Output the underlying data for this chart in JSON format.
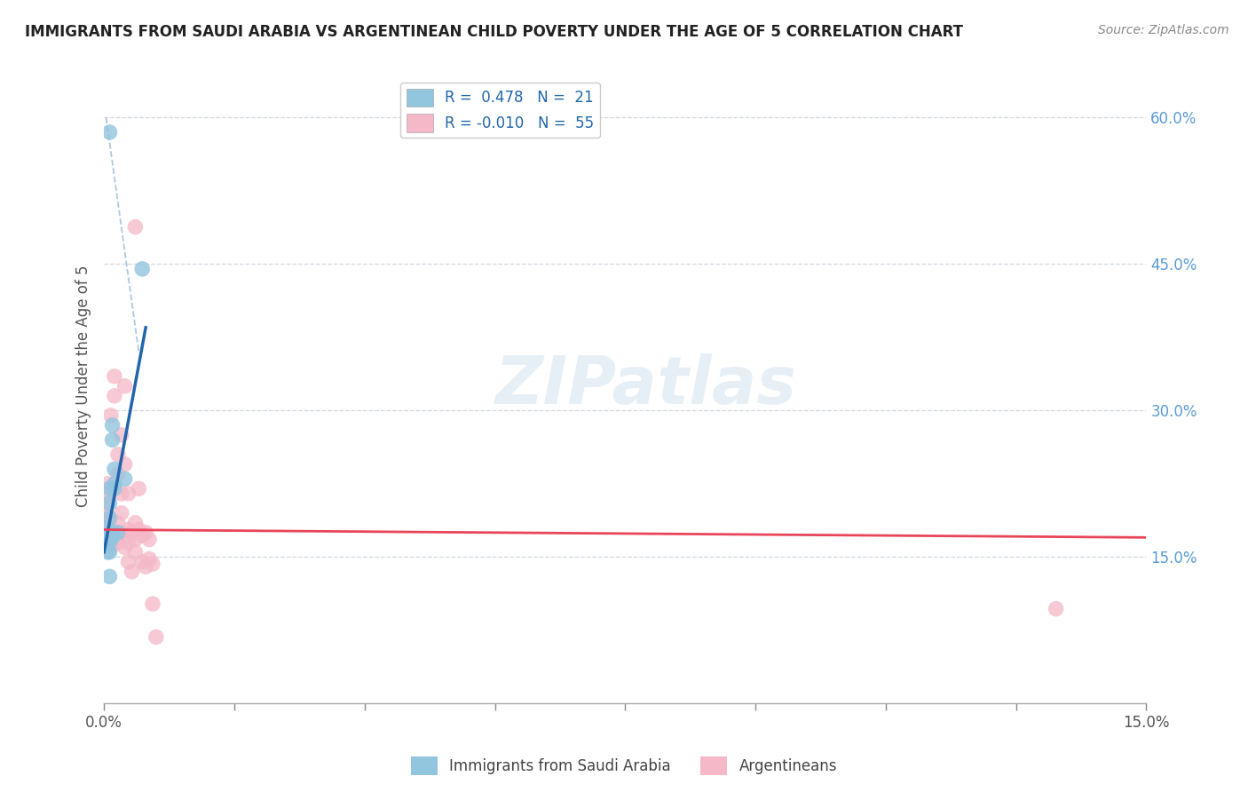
{
  "title": "IMMIGRANTS FROM SAUDI ARABIA VS ARGENTINEAN CHILD POVERTY UNDER THE AGE OF 5 CORRELATION CHART",
  "source": "Source: ZipAtlas.com",
  "ylabel": "Child Poverty Under the Age of 5",
  "xlim": [
    0,
    0.15
  ],
  "ylim": [
    0,
    0.65
  ],
  "xticks": [
    0.0,
    0.01875,
    0.0375,
    0.05625,
    0.075,
    0.09375,
    0.1125,
    0.13125,
    0.15
  ],
  "yticks_right": [
    0.15,
    0.3,
    0.45,
    0.6
  ],
  "ytick_labels_right": [
    "15.0%",
    "30.0%",
    "45.0%",
    "60.0%"
  ],
  "legend_r1": "R =  0.478",
  "legend_n1": "N =  21",
  "legend_r2": "R = -0.010",
  "legend_n2": "N =  55",
  "blue_color": "#92c5de",
  "pink_color": "#f4b8c8",
  "blue_line_color": "#2166ac",
  "pink_line_color": "#e8455a",
  "dashed_line_color": "#aec8e0",
  "background_color": "#ffffff",
  "saudi_scatter": [
    [
      0.0008,
      0.205
    ],
    [
      0.0008,
      0.19
    ],
    [
      0.0008,
      0.22
    ],
    [
      0.0012,
      0.27
    ],
    [
      0.0012,
      0.285
    ],
    [
      0.0012,
      0.175
    ],
    [
      0.0008,
      0.165
    ],
    [
      0.0008,
      0.155
    ],
    [
      0.0005,
      0.155
    ],
    [
      0.0015,
      0.225
    ],
    [
      0.0015,
      0.24
    ],
    [
      0.0015,
      0.22
    ],
    [
      0.0005,
      0.18
    ],
    [
      0.001,
      0.175
    ],
    [
      0.0012,
      0.17
    ],
    [
      0.0005,
      0.165
    ],
    [
      0.0008,
      0.13
    ],
    [
      0.002,
      0.175
    ],
    [
      0.003,
      0.23
    ],
    [
      0.0055,
      0.445
    ],
    [
      0.0008,
      0.585
    ]
  ],
  "arg_scatter": [
    [
      0.0002,
      0.175
    ],
    [
      0.0002,
      0.185
    ],
    [
      0.0002,
      0.17
    ],
    [
      0.0003,
      0.195
    ],
    [
      0.0003,
      0.205
    ],
    [
      0.0003,
      0.165
    ],
    [
      0.0005,
      0.19
    ],
    [
      0.0005,
      0.175
    ],
    [
      0.0005,
      0.215
    ],
    [
      0.0005,
      0.225
    ],
    [
      0.0005,
      0.185
    ],
    [
      0.0008,
      0.175
    ],
    [
      0.0008,
      0.185
    ],
    [
      0.0008,
      0.165
    ],
    [
      0.0008,
      0.175
    ],
    [
      0.0008,
      0.22
    ],
    [
      0.001,
      0.16
    ],
    [
      0.001,
      0.295
    ],
    [
      0.0015,
      0.315
    ],
    [
      0.0015,
      0.335
    ],
    [
      0.0015,
      0.175
    ],
    [
      0.002,
      0.165
    ],
    [
      0.002,
      0.255
    ],
    [
      0.002,
      0.235
    ],
    [
      0.002,
      0.185
    ],
    [
      0.0025,
      0.275
    ],
    [
      0.0025,
      0.195
    ],
    [
      0.0025,
      0.215
    ],
    [
      0.0025,
      0.175
    ],
    [
      0.003,
      0.16
    ],
    [
      0.003,
      0.325
    ],
    [
      0.003,
      0.245
    ],
    [
      0.0035,
      0.145
    ],
    [
      0.0035,
      0.165
    ],
    [
      0.0035,
      0.215
    ],
    [
      0.0035,
      0.178
    ],
    [
      0.004,
      0.135
    ],
    [
      0.004,
      0.175
    ],
    [
      0.0045,
      0.168
    ],
    [
      0.0045,
      0.155
    ],
    [
      0.0045,
      0.185
    ],
    [
      0.005,
      0.178
    ],
    [
      0.005,
      0.22
    ],
    [
      0.0055,
      0.145
    ],
    [
      0.0055,
      0.172
    ],
    [
      0.006,
      0.175
    ],
    [
      0.006,
      0.14
    ],
    [
      0.0065,
      0.168
    ],
    [
      0.0065,
      0.148
    ],
    [
      0.007,
      0.102
    ],
    [
      0.007,
      0.143
    ],
    [
      0.0045,
      0.488
    ],
    [
      0.0075,
      0.068
    ],
    [
      0.137,
      0.097
    ],
    [
      0.001,
      0.175
    ]
  ],
  "blue_line": [
    [
      0.0,
      0.155
    ],
    [
      0.006,
      0.385
    ]
  ],
  "pink_line": [
    [
      0.0,
      0.178
    ],
    [
      0.15,
      0.17
    ]
  ],
  "dash_line": [
    [
      0.0003,
      0.6
    ],
    [
      0.005,
      0.36
    ]
  ]
}
